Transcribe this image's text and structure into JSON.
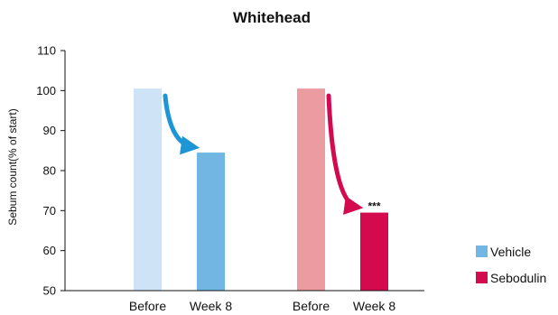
{
  "chart_data": {
    "type": "bar",
    "title": "Whitehead",
    "ylabel": "Sebum count(% of start)",
    "xlabel": "",
    "ylim": [
      50,
      110
    ],
    "yticks": [
      50,
      60,
      70,
      80,
      90,
      100,
      110
    ],
    "legend_position": "right",
    "groups": [
      {
        "name": "Vehicle",
        "bars": [
          {
            "category": "Before",
            "value": 100.5,
            "color": "#cfe3f6"
          },
          {
            "category": "Week 8",
            "value": 84.5,
            "color": "#72b6e3"
          }
        ],
        "arrow_color": "#1e96d6",
        "annotation": ""
      },
      {
        "name": "Sebodulin",
        "bars": [
          {
            "category": "Before",
            "value": 100.5,
            "color": "#ec9ba0"
          },
          {
            "category": "Week 8",
            "value": 69.5,
            "color": "#d40a4f"
          }
        ],
        "arrow_color": "#d40a4f",
        "annotation": "***"
      }
    ],
    "legend": [
      {
        "label": "Vehicle",
        "color": "#72b6e3"
      },
      {
        "label": "Sebodulin",
        "color": "#d40a4f"
      }
    ]
  }
}
